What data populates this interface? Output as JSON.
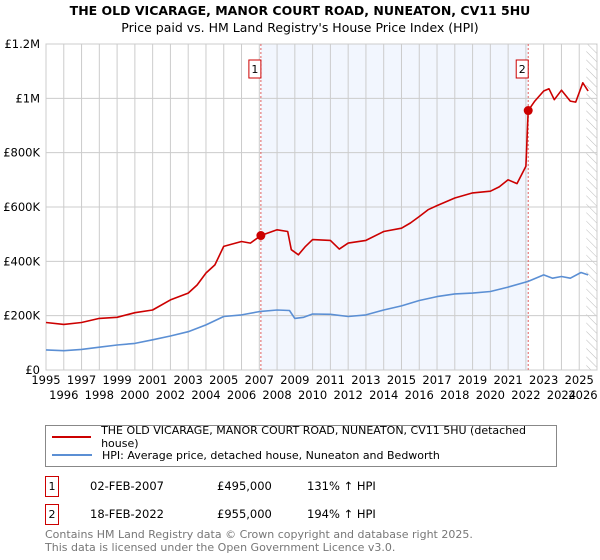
{
  "title": "THE OLD VICARAGE, MANOR COURT ROAD, NUNEATON, CV11 5HU",
  "subtitle": "Price paid vs. HM Land Registry's House Price Index (HPI)",
  "chart_data": {
    "type": "line",
    "title": "THE OLD VICARAGE, MANOR COURT ROAD, NUNEATON, CV11 5HU",
    "subtitle": "Price paid vs. HM Land Registry's House Price Index (HPI)",
    "xlim": [
      1995,
      2026
    ],
    "ylim": [
      0,
      1200000
    ],
    "x_ticks": [
      "1995",
      "1996",
      "1997",
      "1998",
      "1999",
      "2000",
      "2001",
      "2002",
      "2003",
      "2004",
      "2005",
      "2006",
      "2007",
      "2008",
      "2009",
      "2010",
      "2011",
      "2012",
      "2013",
      "2014",
      "2015",
      "2016",
      "2017",
      "2018",
      "2019",
      "2020",
      "2021",
      "2022",
      "2023",
      "2024",
      "2025",
      "2026"
    ],
    "y_ticks": [
      {
        "v": 0,
        "label": "£0"
      },
      {
        "v": 200000,
        "label": "£200K"
      },
      {
        "v": 400000,
        "label": "£400K"
      },
      {
        "v": 600000,
        "label": "£600K"
      },
      {
        "v": 800000,
        "label": "£800K"
      },
      {
        "v": 1000000,
        "label": "£1M"
      },
      {
        "v": 1200000,
        "label": "£1.2M"
      }
    ],
    "grid": true,
    "shaded_range": [
      2007.09,
      2022.13
    ],
    "forecast_hatch_from": 2025.4,
    "series": [
      {
        "name": "THE OLD VICARAGE, MANOR COURT ROAD, NUNEATON, CV11 5HU (detached house)",
        "color": "#cc0000",
        "x": [
          1995,
          1996,
          1997,
          1998,
          1999,
          2000,
          2001,
          2002,
          2003,
          2003.5,
          2004,
          2004.5,
          2005,
          2006,
          2006.5,
          2007.09,
          2008,
          2008.6,
          2008.8,
          2009.2,
          2009.6,
          2010,
          2011,
          2011.5,
          2012,
          2013,
          2014,
          2015,
          2015.5,
          2016,
          2016.5,
          2017,
          2018,
          2019,
          2020,
          2020.5,
          2021,
          2021.5,
          2022.0,
          2022.13,
          2022.5,
          2023,
          2023.3,
          2023.6,
          2024,
          2024.5,
          2024.8,
          2025.2,
          2025.5
        ],
        "y": [
          175000,
          168000,
          175000,
          190000,
          194000,
          211000,
          221000,
          258000,
          283000,
          313000,
          357000,
          387000,
          455000,
          473000,
          467000,
          495000,
          516000,
          510000,
          443000,
          424000,
          455000,
          480000,
          477000,
          445000,
          467000,
          477000,
          510000,
          522000,
          541000,
          565000,
          590000,
          605000,
          633000,
          652000,
          658000,
          674000,
          700000,
          686000,
          750000,
          955000,
          990000,
          1027000,
          1035000,
          995000,
          1030000,
          990000,
          986000,
          1057000,
          1027000
        ]
      },
      {
        "name": "HPI: Average price, detached house, Nuneaton and Bedworth",
        "color": "#5b8fd4",
        "x": [
          1995,
          1996,
          1997,
          1998,
          1999,
          2000,
          2001,
          2002,
          2003,
          2004,
          2005,
          2006,
          2007,
          2008,
          2008.7,
          2009,
          2009.5,
          2010,
          2011,
          2012,
          2013,
          2014,
          2015,
          2016,
          2017,
          2018,
          2019,
          2020,
          2021,
          2022.13,
          2023,
          2023.5,
          2024,
          2024.5,
          2025.1,
          2025.5
        ],
        "y": [
          74000,
          71000,
          76000,
          84000,
          92000,
          98000,
          111000,
          125000,
          141000,
          166000,
          197000,
          203000,
          215000,
          221000,
          219000,
          190000,
          194000,
          206000,
          205000,
          197000,
          203000,
          221000,
          236000,
          256000,
          270000,
          280000,
          283000,
          289000,
          305000,
          326000,
          350000,
          338000,
          344000,
          338000,
          359000,
          350000
        ]
      }
    ],
    "annotations": [
      {
        "label": "1",
        "x": 2007.09,
        "y": 495000
      },
      {
        "label": "2",
        "x": 2022.13,
        "y": 955000
      }
    ],
    "legend_position": "bottom"
  },
  "legend": [
    {
      "label": "THE OLD VICARAGE, MANOR COURT ROAD, NUNEATON, CV11 5HU (detached house)",
      "color": "#cc0000"
    },
    {
      "label": "HPI: Average price, detached house, Nuneaton and Bedworth",
      "color": "#5b8fd4"
    }
  ],
  "transactions": [
    {
      "num": "1",
      "date": "02-FEB-2007",
      "price": "£495,000",
      "hpi": "131% ↑ HPI"
    },
    {
      "num": "2",
      "date": "18-FEB-2022",
      "price": "£955,000",
      "hpi": "194% ↑ HPI"
    }
  ],
  "footer": {
    "line1": "Contains HM Land Registry data © Crown copyright and database right 2025.",
    "line2": "This data is licensed under the Open Government Licence v3.0."
  }
}
